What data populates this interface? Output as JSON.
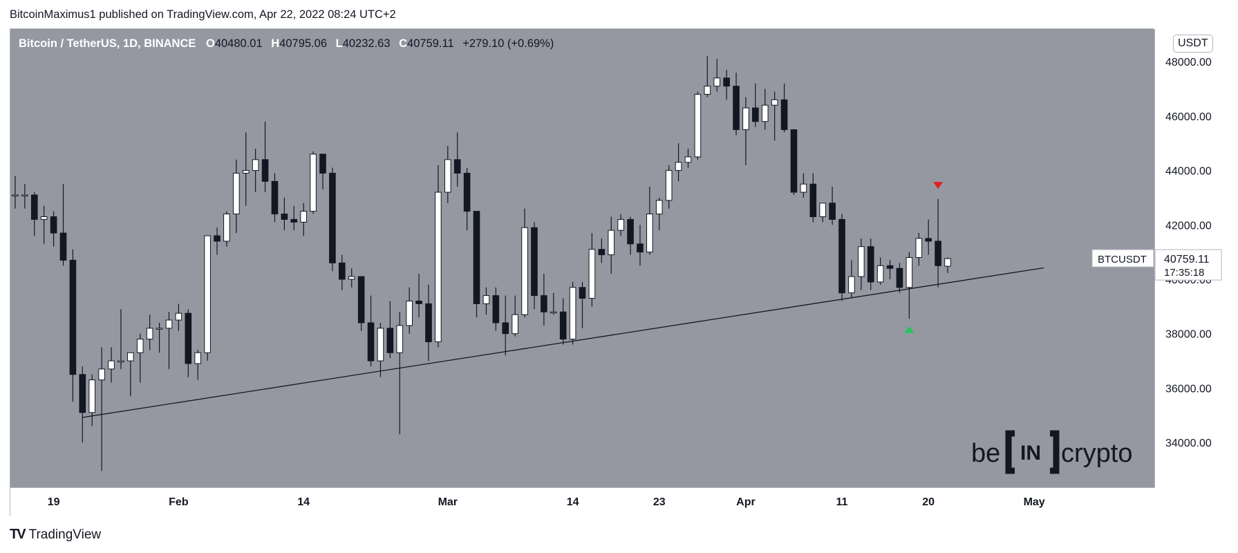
{
  "header": {
    "published": "BitcoinMaximus1 published on TradingView.com, Apr 22, 2022 08:24 UTC+2"
  },
  "legend": {
    "symbol": "Bitcoin / TetherUS, 1D, BINANCE",
    "o_label": "O",
    "o": "40480.01",
    "h_label": "H",
    "h": "40795.06",
    "l_label": "L",
    "l": "40232.63",
    "c_label": "C",
    "c": "40759.11",
    "change": "+279.10 (+0.69%)"
  },
  "currency": "USDT",
  "price_label": {
    "symbol": "BTCUSDT",
    "price": "40759.11",
    "countdown": "17:35:18"
  },
  "watermark": {
    "left": "be",
    "middle": "IN",
    "right": "crypto"
  },
  "footer": {
    "brand": "TradingView",
    "logo": "TV"
  },
  "colors": {
    "up": "#ffffff",
    "down": "#131722",
    "background": "#9598a1",
    "arrow_up": "#22c55e",
    "arrow_down": "#e0211d"
  },
  "chart_data": {
    "type": "candlestick",
    "y_ticks": [
      34000,
      36000,
      38000,
      40000,
      42000,
      44000,
      46000,
      48000
    ],
    "y_tick_labels": [
      "34000.00",
      "36000.00",
      "38000.00",
      "40000.00",
      "42000.00",
      "44000.00",
      "46000.00",
      "48000.00"
    ],
    "ylim": [
      32350,
      49200
    ],
    "x_labels": [
      {
        "date": "2022-01-19",
        "label": "19"
      },
      {
        "date": "2022-02-01",
        "label": "Feb"
      },
      {
        "date": "2022-02-14",
        "label": "14"
      },
      {
        "date": "2022-03-01",
        "label": "Mar"
      },
      {
        "date": "2022-03-14",
        "label": "14"
      },
      {
        "date": "2022-03-23",
        "label": "23"
      },
      {
        "date": "2022-04-01",
        "label": "Apr"
      },
      {
        "date": "2022-04-11",
        "label": "11"
      },
      {
        "date": "2022-04-20",
        "label": "20"
      },
      {
        "date": "2022-05-01",
        "label": "May"
      }
    ],
    "x_range": [
      "2022-01-15",
      "2022-05-14"
    ],
    "candles": [
      {
        "d": "2022-01-15",
        "o": 43100,
        "h": 43800,
        "l": 42600,
        "c": 43100
      },
      {
        "d": "2022-01-16",
        "o": 43100,
        "h": 43500,
        "l": 42600,
        "c": 43100
      },
      {
        "d": "2022-01-17",
        "o": 43100,
        "h": 43200,
        "l": 41600,
        "c": 42200
      },
      {
        "d": "2022-01-18",
        "o": 42200,
        "h": 42700,
        "l": 41300,
        "c": 42300
      },
      {
        "d": "2022-01-19",
        "o": 42300,
        "h": 42500,
        "l": 41200,
        "c": 41700
      },
      {
        "d": "2022-01-20",
        "o": 41700,
        "h": 43500,
        "l": 40500,
        "c": 40700
      },
      {
        "d": "2022-01-21",
        "o": 40700,
        "h": 41100,
        "l": 35500,
        "c": 36500
      },
      {
        "d": "2022-01-22",
        "o": 36500,
        "h": 36800,
        "l": 34000,
        "c": 35100
      },
      {
        "d": "2022-01-23",
        "o": 35100,
        "h": 36500,
        "l": 34600,
        "c": 36300
      },
      {
        "d": "2022-01-24",
        "o": 36300,
        "h": 37500,
        "l": 32950,
        "c": 36700
      },
      {
        "d": "2022-01-25",
        "o": 36700,
        "h": 37500,
        "l": 36200,
        "c": 37000
      },
      {
        "d": "2022-01-26",
        "o": 37000,
        "h": 38900,
        "l": 36700,
        "c": 37000
      },
      {
        "d": "2022-01-27",
        "o": 37000,
        "h": 37200,
        "l": 35700,
        "c": 37300
      },
      {
        "d": "2022-01-28",
        "o": 37300,
        "h": 38000,
        "l": 36200,
        "c": 37800
      },
      {
        "d": "2022-01-29",
        "o": 37800,
        "h": 38700,
        "l": 37400,
        "c": 38200
      },
      {
        "d": "2022-01-30",
        "o": 38200,
        "h": 38400,
        "l": 37300,
        "c": 38200
      },
      {
        "d": "2022-01-31",
        "o": 38200,
        "h": 38800,
        "l": 36700,
        "c": 38500
      },
      {
        "d": "2022-02-01",
        "o": 38500,
        "h": 39100,
        "l": 38100,
        "c": 38750
      },
      {
        "d": "2022-02-02",
        "o": 38750,
        "h": 38900,
        "l": 36400,
        "c": 36900
      },
      {
        "d": "2022-02-03",
        "o": 36900,
        "h": 37400,
        "l": 36300,
        "c": 37300
      },
      {
        "d": "2022-02-04",
        "o": 37300,
        "h": 41600,
        "l": 37000,
        "c": 41600
      },
      {
        "d": "2022-02-05",
        "o": 41600,
        "h": 41900,
        "l": 40900,
        "c": 41400
      },
      {
        "d": "2022-02-06",
        "o": 41400,
        "h": 42500,
        "l": 41200,
        "c": 42400
      },
      {
        "d": "2022-02-07",
        "o": 42400,
        "h": 44400,
        "l": 41700,
        "c": 43900
      },
      {
        "d": "2022-02-08",
        "o": 43900,
        "h": 45400,
        "l": 42700,
        "c": 44000
      },
      {
        "d": "2022-02-09",
        "o": 44000,
        "h": 44800,
        "l": 43200,
        "c": 44400
      },
      {
        "d": "2022-02-10",
        "o": 44400,
        "h": 45800,
        "l": 43200,
        "c": 43600
      },
      {
        "d": "2022-02-11",
        "o": 43600,
        "h": 43900,
        "l": 42100,
        "c": 42400
      },
      {
        "d": "2022-02-12",
        "o": 42400,
        "h": 43000,
        "l": 41800,
        "c": 42200
      },
      {
        "d": "2022-02-13",
        "o": 42200,
        "h": 42700,
        "l": 41800,
        "c": 42100
      },
      {
        "d": "2022-02-14",
        "o": 42100,
        "h": 42800,
        "l": 41600,
        "c": 42500
      },
      {
        "d": "2022-02-15",
        "o": 42500,
        "h": 44700,
        "l": 42400,
        "c": 44600
      },
      {
        "d": "2022-02-16",
        "o": 44600,
        "h": 44600,
        "l": 43300,
        "c": 43900
      },
      {
        "d": "2022-02-17",
        "o": 43900,
        "h": 44100,
        "l": 40300,
        "c": 40600
      },
      {
        "d": "2022-02-18",
        "o": 40600,
        "h": 40900,
        "l": 39600,
        "c": 40000
      },
      {
        "d": "2022-02-19",
        "o": 40000,
        "h": 40400,
        "l": 39700,
        "c": 40100
      },
      {
        "d": "2022-02-20",
        "o": 40100,
        "h": 40100,
        "l": 38100,
        "c": 38400
      },
      {
        "d": "2022-02-21",
        "o": 38400,
        "h": 39400,
        "l": 36800,
        "c": 37000
      },
      {
        "d": "2022-02-22",
        "o": 37000,
        "h": 38400,
        "l": 36400,
        "c": 38200
      },
      {
        "d": "2022-02-23",
        "o": 38200,
        "h": 39200,
        "l": 37100,
        "c": 37300
      },
      {
        "d": "2022-02-24",
        "o": 37300,
        "h": 38800,
        "l": 34300,
        "c": 38300
      },
      {
        "d": "2022-02-25",
        "o": 38300,
        "h": 39700,
        "l": 38000,
        "c": 39200
      },
      {
        "d": "2022-02-26",
        "o": 39200,
        "h": 40200,
        "l": 38600,
        "c": 39100
      },
      {
        "d": "2022-02-27",
        "o": 39100,
        "h": 39800,
        "l": 37000,
        "c": 37700
      },
      {
        "d": "2022-02-28",
        "o": 37700,
        "h": 44200,
        "l": 37500,
        "c": 43200
      },
      {
        "d": "2022-03-01",
        "o": 43200,
        "h": 44900,
        "l": 42800,
        "c": 44400
      },
      {
        "d": "2022-03-02",
        "o": 44400,
        "h": 45400,
        "l": 43400,
        "c": 43900
      },
      {
        "d": "2022-03-03",
        "o": 43900,
        "h": 44100,
        "l": 41800,
        "c": 42500
      },
      {
        "d": "2022-03-04",
        "o": 42500,
        "h": 42500,
        "l": 38600,
        "c": 39100
      },
      {
        "d": "2022-03-05",
        "o": 39100,
        "h": 39700,
        "l": 38700,
        "c": 39400
      },
      {
        "d": "2022-03-06",
        "o": 39400,
        "h": 39700,
        "l": 38100,
        "c": 38400
      },
      {
        "d": "2022-03-07",
        "o": 38400,
        "h": 39400,
        "l": 37200,
        "c": 38000
      },
      {
        "d": "2022-03-08",
        "o": 38000,
        "h": 39400,
        "l": 37900,
        "c": 38700
      },
      {
        "d": "2022-03-09",
        "o": 38700,
        "h": 42600,
        "l": 38600,
        "c": 41900
      },
      {
        "d": "2022-03-10",
        "o": 41900,
        "h": 42100,
        "l": 38900,
        "c": 39400
      },
      {
        "d": "2022-03-11",
        "o": 39400,
        "h": 40200,
        "l": 38300,
        "c": 38800
      },
      {
        "d": "2022-03-12",
        "o": 38800,
        "h": 39500,
        "l": 38700,
        "c": 38800
      },
      {
        "d": "2022-03-13",
        "o": 38800,
        "h": 39300,
        "l": 37600,
        "c": 37800
      },
      {
        "d": "2022-03-14",
        "o": 37800,
        "h": 39900,
        "l": 37600,
        "c": 39700
      },
      {
        "d": "2022-03-15",
        "o": 39700,
        "h": 39900,
        "l": 38200,
        "c": 39300
      },
      {
        "d": "2022-03-16",
        "o": 39300,
        "h": 41700,
        "l": 39000,
        "c": 41100
      },
      {
        "d": "2022-03-17",
        "o": 41100,
        "h": 41500,
        "l": 40600,
        "c": 40900
      },
      {
        "d": "2022-03-18",
        "o": 40900,
        "h": 42300,
        "l": 40200,
        "c": 41800
      },
      {
        "d": "2022-03-19",
        "o": 41800,
        "h": 42400,
        "l": 41600,
        "c": 42200
      },
      {
        "d": "2022-03-20",
        "o": 42200,
        "h": 42300,
        "l": 40900,
        "c": 41300
      },
      {
        "d": "2022-03-21",
        "o": 41300,
        "h": 42000,
        "l": 40500,
        "c": 41000
      },
      {
        "d": "2022-03-22",
        "o": 41000,
        "h": 43400,
        "l": 40900,
        "c": 42400
      },
      {
        "d": "2022-03-23",
        "o": 42400,
        "h": 43000,
        "l": 41800,
        "c": 42900
      },
      {
        "d": "2022-03-24",
        "o": 42900,
        "h": 44200,
        "l": 42600,
        "c": 44000
      },
      {
        "d": "2022-03-25",
        "o": 44000,
        "h": 45000,
        "l": 43600,
        "c": 44300
      },
      {
        "d": "2022-03-26",
        "o": 44300,
        "h": 44800,
        "l": 44100,
        "c": 44500
      },
      {
        "d": "2022-03-27",
        "o": 44500,
        "h": 46900,
        "l": 44400,
        "c": 46800
      },
      {
        "d": "2022-03-28",
        "o": 46800,
        "h": 48200,
        "l": 46700,
        "c": 47100
      },
      {
        "d": "2022-03-29",
        "o": 47100,
        "h": 48100,
        "l": 46900,
        "c": 47400
      },
      {
        "d": "2022-03-30",
        "o": 47400,
        "h": 47700,
        "l": 46600,
        "c": 47100
      },
      {
        "d": "2022-03-31",
        "o": 47100,
        "h": 47600,
        "l": 45300,
        "c": 45500
      },
      {
        "d": "2022-04-01",
        "o": 45500,
        "h": 46700,
        "l": 44200,
        "c": 46300
      },
      {
        "d": "2022-04-02",
        "o": 46300,
        "h": 47200,
        "l": 45600,
        "c": 45800
      },
      {
        "d": "2022-04-03",
        "o": 45800,
        "h": 47000,
        "l": 45500,
        "c": 46400
      },
      {
        "d": "2022-04-04",
        "o": 46400,
        "h": 46900,
        "l": 45100,
        "c": 46600
      },
      {
        "d": "2022-04-05",
        "o": 46600,
        "h": 47200,
        "l": 45400,
        "c": 45500
      },
      {
        "d": "2022-04-06",
        "o": 45500,
        "h": 45500,
        "l": 43100,
        "c": 43200
      },
      {
        "d": "2022-04-07",
        "o": 43200,
        "h": 43900,
        "l": 43000,
        "c": 43500
      },
      {
        "d": "2022-04-08",
        "o": 43500,
        "h": 43900,
        "l": 42100,
        "c": 42300
      },
      {
        "d": "2022-04-09",
        "o": 42300,
        "h": 42800,
        "l": 42100,
        "c": 42800
      },
      {
        "d": "2022-04-10",
        "o": 42800,
        "h": 43400,
        "l": 42000,
        "c": 42200
      },
      {
        "d": "2022-04-11",
        "o": 42200,
        "h": 42400,
        "l": 39200,
        "c": 39500
      },
      {
        "d": "2022-04-12",
        "o": 39500,
        "h": 40700,
        "l": 39300,
        "c": 40100
      },
      {
        "d": "2022-04-13",
        "o": 40100,
        "h": 41500,
        "l": 39600,
        "c": 41200
      },
      {
        "d": "2022-04-14",
        "o": 41200,
        "h": 41500,
        "l": 39600,
        "c": 39900
      },
      {
        "d": "2022-04-15",
        "o": 39900,
        "h": 40800,
        "l": 39800,
        "c": 40500
      },
      {
        "d": "2022-04-16",
        "o": 40500,
        "h": 40700,
        "l": 40000,
        "c": 40400
      },
      {
        "d": "2022-04-17",
        "o": 40400,
        "h": 40600,
        "l": 39500,
        "c": 39700
      },
      {
        "d": "2022-04-18",
        "o": 39700,
        "h": 41000,
        "l": 38550,
        "c": 40800
      },
      {
        "d": "2022-04-19",
        "o": 40800,
        "h": 41700,
        "l": 40500,
        "c": 41500
      },
      {
        "d": "2022-04-20",
        "o": 41500,
        "h": 42200,
        "l": 40900,
        "c": 41400
      },
      {
        "d": "2022-04-21",
        "o": 41400,
        "h": 42950,
        "l": 39700,
        "c": 40500
      },
      {
        "d": "2022-04-22",
        "o": 40480,
        "h": 40800,
        "l": 40230,
        "c": 40760
      }
    ],
    "trendline": {
      "from": {
        "d": "2022-01-22",
        "v": 34920
      },
      "to": {
        "d": "2022-05-02",
        "v": 40420
      }
    },
    "markers": [
      {
        "d": "2022-04-18",
        "v": 38150,
        "type": "arrow-up",
        "color": "#22c55e"
      },
      {
        "d": "2022-04-21",
        "v": 43450,
        "type": "arrow-down",
        "color": "#e0211d"
      }
    ],
    "last_price": 40759.11
  }
}
